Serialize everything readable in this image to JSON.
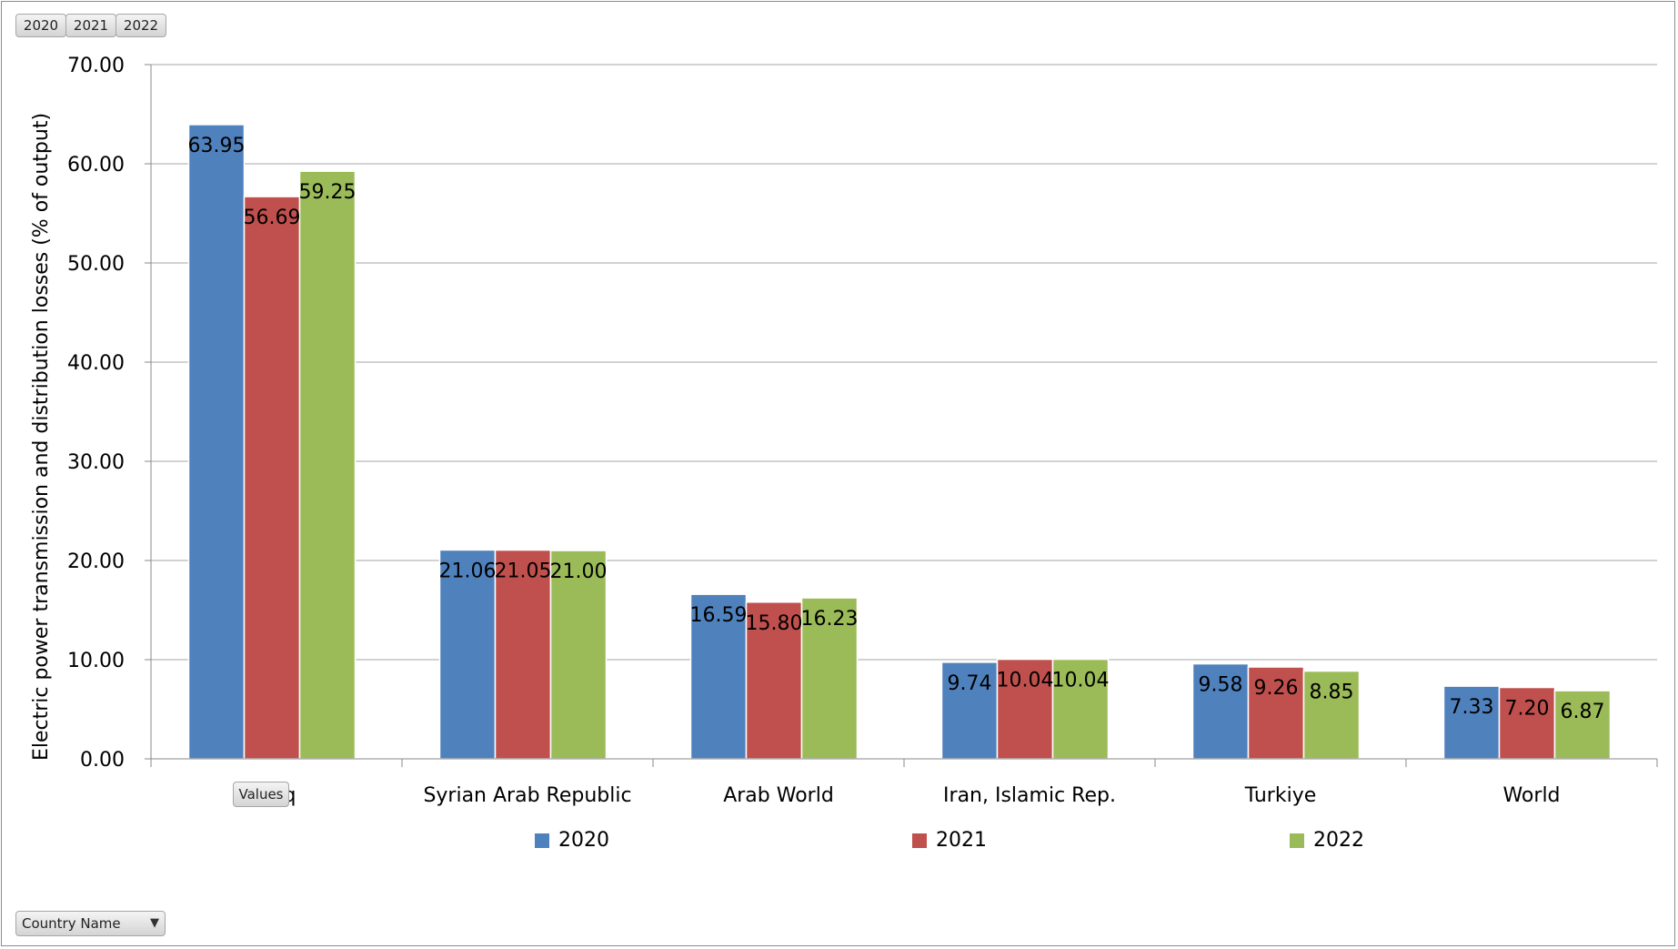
{
  "filter_buttons": [
    "2020",
    "2021",
    "2022"
  ],
  "values_button": "Values",
  "row_field_button": "Country Name",
  "icons": {
    "row_field_filter": "filter-dropdown-icon"
  },
  "colors": {
    "2020": "#4f81bd",
    "2021": "#c0504d",
    "2022": "#9bbb59",
    "gridline": "#a6a6a6"
  },
  "chart_data": {
    "type": "bar",
    "title": "",
    "xlabel": "",
    "ylabel": "Electric power transmission and distribution losses (% of output)",
    "ylim": [
      0,
      70
    ],
    "yticks": [
      "0.00",
      "10.00",
      "20.00",
      "30.00",
      "40.00",
      "50.00",
      "60.00",
      "70.00"
    ],
    "grid": true,
    "legend_position": "bottom",
    "categories": [
      "Iraq",
      "Syrian Arab Republic",
      "Arab World",
      "Iran, Islamic Rep.",
      "Turkiye",
      "World"
    ],
    "series": [
      {
        "name": "2020",
        "values": [
          63.95,
          21.06,
          16.59,
          9.74,
          9.58,
          7.33
        ]
      },
      {
        "name": "2021",
        "values": [
          56.69,
          21.05,
          15.8,
          10.04,
          9.26,
          7.2
        ]
      },
      {
        "name": "2022",
        "values": [
          59.25,
          21.0,
          16.23,
          10.04,
          8.85,
          6.87
        ]
      }
    ]
  }
}
